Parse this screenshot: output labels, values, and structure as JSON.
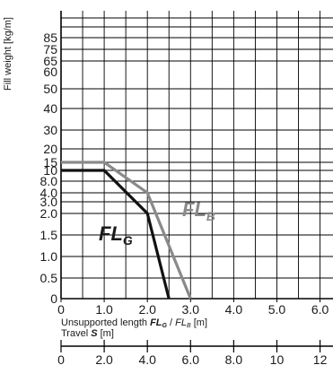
{
  "chart_data": {
    "type": "line",
    "ylabel": "Fill weight [kg/m]",
    "xlabel_prefix": "Unsupported length ",
    "xlabel_fl_g": "FL",
    "xlabel_fl_g_sub": "G",
    "xlabel_sep": " / ",
    "xlabel_fl_b": "FL",
    "xlabel_fl_b_sub": "B",
    "xlabel_unit": " [m]",
    "secondary_xlabel_prefix": "Travel ",
    "secondary_xlabel_var": "S",
    "secondary_xlabel_unit": " [m]",
    "y_tick_labels": [
      "0",
      "0.5",
      "1.0",
      "1.5",
      "2.0",
      "3.0",
      "4.0",
      "8.0",
      "10",
      "15",
      "20",
      "30",
      "40",
      "50",
      "60",
      "65",
      "75",
      "85"
    ],
    "x_ticks": [
      0,
      1.0,
      2.0,
      3.0,
      4.0,
      5.0,
      6.0
    ],
    "x_tick_labels": [
      "0",
      "1.0",
      "2.0",
      "3.0",
      "4.0",
      "5.0",
      "6.0"
    ],
    "travel_ticks": [
      0,
      2.0,
      4.0,
      6.0,
      8.0,
      10,
      12
    ],
    "travel_tick_labels": [
      "0",
      "2.0",
      "4.0",
      "6.0",
      "8.0",
      "10",
      "12"
    ],
    "xlim": [
      0,
      6.3
    ],
    "grid": true,
    "series": [
      {
        "name": "FL",
        "name_sub": "B",
        "color": "#8a8a8a",
        "points": [
          [
            0,
            15
          ],
          [
            1.0,
            15
          ],
          [
            1.0,
            15
          ],
          [
            2.0,
            4.5
          ],
          [
            2.0,
            4.5
          ],
          [
            3.0,
            0
          ]
        ]
      },
      {
        "name": "FL",
        "name_sub": "G",
        "color": "#111111",
        "points": [
          [
            0,
            10
          ],
          [
            1.0,
            10
          ],
          [
            2.0,
            3.0
          ],
          [
            2.0,
            3.0
          ],
          [
            2.5,
            0
          ]
        ]
      }
    ]
  }
}
